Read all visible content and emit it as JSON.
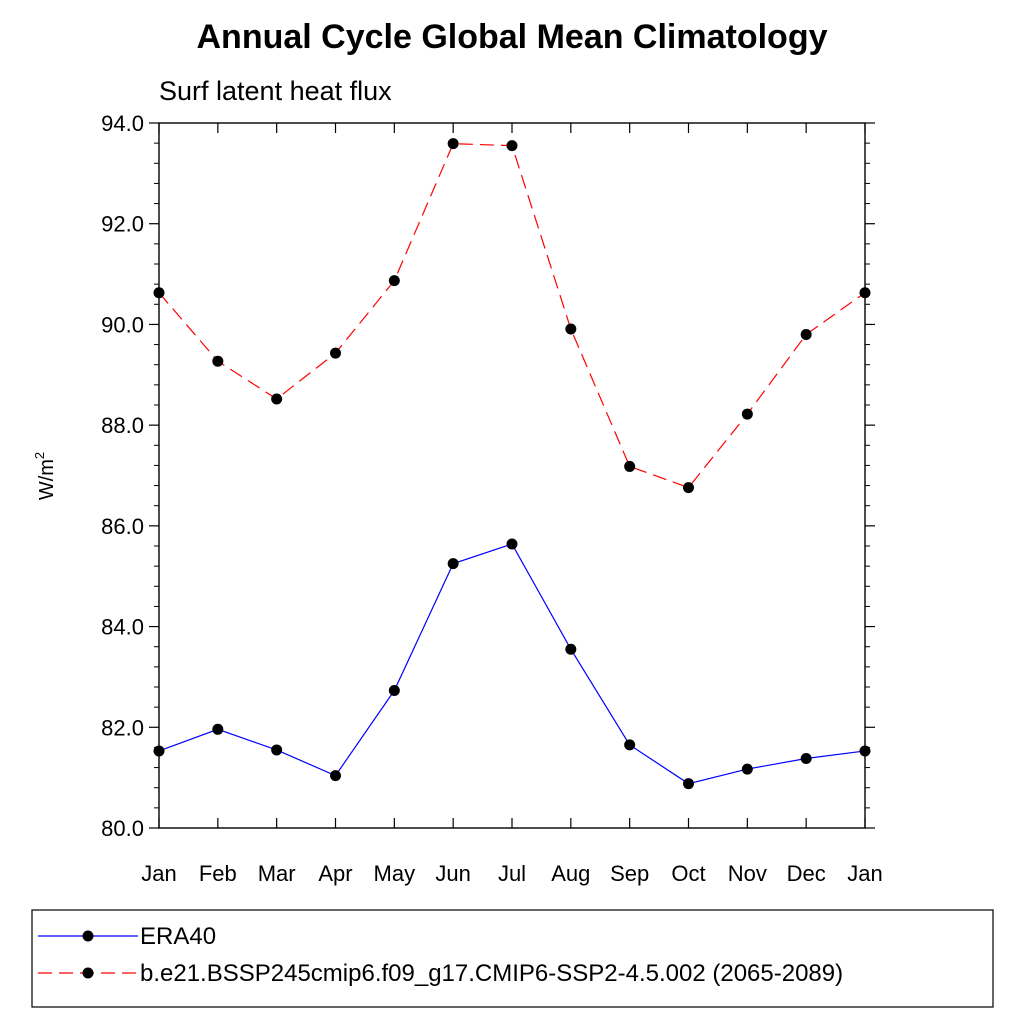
{
  "chart_data": {
    "type": "line",
    "title": "Annual Cycle Global Mean Climatology",
    "subtitle": "Surf latent heat flux",
    "xlabel": "",
    "ylabel": "W/m",
    "ylabel_superscript": "2",
    "categories": [
      "Jan",
      "Feb",
      "Mar",
      "Apr",
      "May",
      "Jun",
      "Jul",
      "Aug",
      "Sep",
      "Oct",
      "Nov",
      "Dec",
      "Jan"
    ],
    "ylim": [
      80.0,
      94.0
    ],
    "yticks": [
      "80.0",
      "82.0",
      "84.0",
      "86.0",
      "88.0",
      "90.0",
      "92.0",
      "94.0"
    ],
    "grid": false,
    "legend_position": "bottom",
    "series": [
      {
        "name": "ERA40",
        "color": "#0000ff",
        "line_style": "solid",
        "marker": "filled-circle",
        "values": [
          81.53,
          81.96,
          81.55,
          81.04,
          82.73,
          85.25,
          85.64,
          83.55,
          81.65,
          80.88,
          81.17,
          81.38,
          81.53
        ]
      },
      {
        "name": "b.e21.BSSP245cmip6.f09_g17.CMIP6-SSP2-4.5.002 (2065-2089)",
        "color": "#ff0000",
        "line_style": "dashed",
        "marker": "filled-circle",
        "values": [
          90.63,
          89.27,
          88.52,
          89.43,
          90.87,
          93.59,
          93.55,
          89.91,
          87.18,
          86.76,
          88.22,
          89.8,
          90.63
        ]
      }
    ]
  }
}
